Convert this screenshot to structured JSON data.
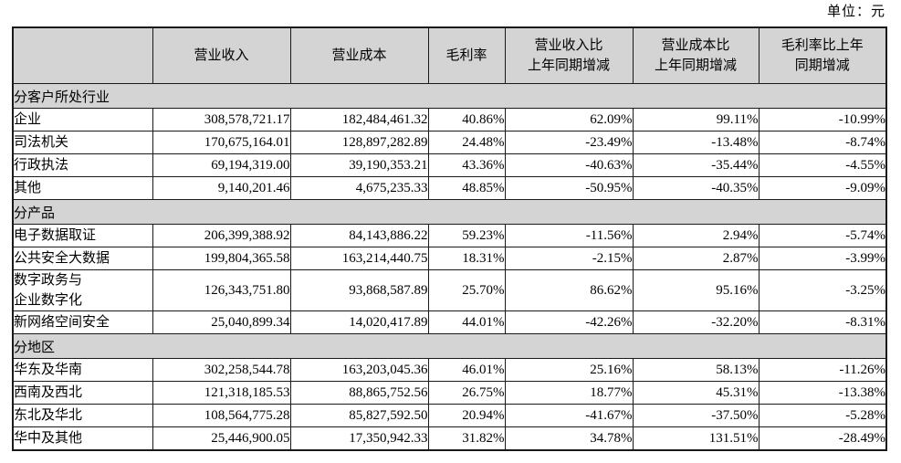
{
  "unit_label": "单位：元",
  "colors": {
    "header_bg": "#d4d4d4",
    "section_bg": "#d4d4d4",
    "border": "#1a1a1a",
    "text": "#000000"
  },
  "table": {
    "columns": [
      "",
      "营业收入",
      "营业成本",
      "毛利率",
      "营业收入比\n上年同期增减",
      "营业成本比\n上年同期增减",
      "毛利率比上年\n同期增减"
    ],
    "sections": [
      {
        "title": "分客户所处行业",
        "rows": [
          [
            "企业",
            "308,578,721.17",
            "182,484,461.32",
            "40.86%",
            "62.09%",
            "99.11%",
            "-10.99%"
          ],
          [
            "司法机关",
            "170,675,164.01",
            "128,897,282.89",
            "24.48%",
            "-23.49%",
            "-13.48%",
            "-8.74%"
          ],
          [
            "行政执法",
            "69,194,319.00",
            "39,190,353.21",
            "43.36%",
            "-40.63%",
            "-35.44%",
            "-4.55%"
          ],
          [
            "其他",
            "9,140,201.46",
            "4,675,235.33",
            "48.85%",
            "-50.95%",
            "-40.35%",
            "-9.09%"
          ]
        ]
      },
      {
        "title": "分产品",
        "rows": [
          [
            "电子数据取证",
            "206,399,388.92",
            "84,143,886.22",
            "59.23%",
            "-11.56%",
            "2.94%",
            "-5.74%"
          ],
          [
            "公共安全大数据",
            "199,804,365.58",
            "163,214,440.75",
            "18.31%",
            "-2.15%",
            "2.87%",
            "-3.99%"
          ],
          [
            "数字政务与\n企业数字化",
            "126,343,751.80",
            "93,868,587.89",
            "25.70%",
            "86.62%",
            "95.16%",
            "-3.25%"
          ],
          [
            "新网络空间安全",
            "25,040,899.34",
            "14,020,417.89",
            "44.01%",
            "-42.26%",
            "-32.20%",
            "-8.31%"
          ]
        ]
      },
      {
        "title": "分地区",
        "rows": [
          [
            "华东及华南",
            "302,258,544.78",
            "163,203,045.36",
            "46.01%",
            "25.16%",
            "58.13%",
            "-11.26%"
          ],
          [
            "西南及西北",
            "121,318,185.53",
            "88,865,752.56",
            "26.75%",
            "18.77%",
            "45.31%",
            "-13.38%"
          ],
          [
            "东北及华北",
            "108,564,775.28",
            "85,827,592.50",
            "20.94%",
            "-41.67%",
            "-37.50%",
            "-5.28%"
          ],
          [
            "华中及其他",
            "25,446,900.05",
            "17,350,942.33",
            "31.82%",
            "34.78%",
            "131.51%",
            "-28.49%"
          ]
        ]
      }
    ]
  }
}
